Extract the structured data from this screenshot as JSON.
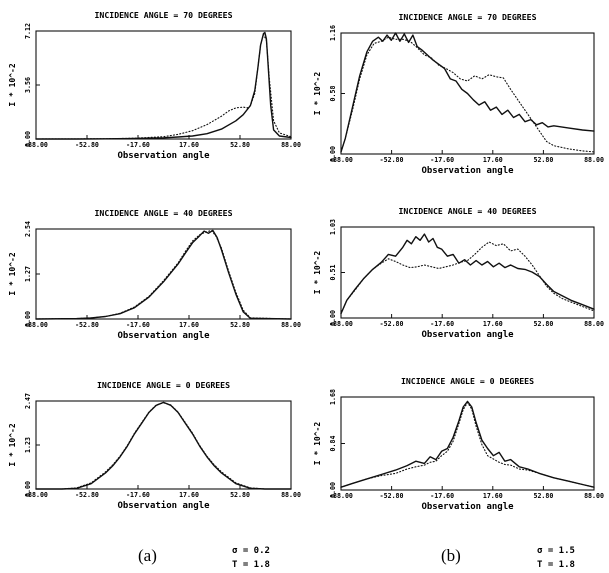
{
  "figure": {
    "panel_labels": [
      "(a)",
      "(b)"
    ],
    "params": [
      {
        "sigma": "σ = 0.2",
        "T": "T = 1.8"
      },
      {
        "sigma": "σ = 1.5",
        "T": "T = 1.8"
      }
    ]
  },
  "chart_data": [
    {
      "type": "line",
      "title": "INCIDENCE ANGLE = 70 DEGREES",
      "xlabel": "Observation angle",
      "ylabel": "I * 10^-2",
      "xlim": [
        -88,
        88
      ],
      "ylim": [
        0,
        7.12
      ],
      "xticks": [
        "-88.00",
        "-52.80",
        "-17.60",
        "17.60",
        "52.80",
        "88.00"
      ],
      "yticks": [
        "0.00",
        "3.56",
        "7.12"
      ],
      "series": [
        {
          "style": "solid",
          "x": [
            -88,
            -60,
            -40,
            -20,
            0,
            10,
            20,
            30,
            40,
            50,
            55,
            60,
            63,
            65,
            67,
            69,
            70,
            71,
            72,
            74,
            76,
            80,
            88
          ],
          "y": [
            0,
            0,
            0.01,
            0.03,
            0.08,
            0.13,
            0.2,
            0.35,
            0.65,
            1.2,
            1.6,
            2.2,
            3.2,
            4.6,
            6.2,
            6.95,
            7.02,
            6.6,
            5.2,
            2.2,
            0.6,
            0.2,
            0.1
          ]
        },
        {
          "style": "dotted",
          "x": [
            -88,
            -40,
            -20,
            0,
            10,
            20,
            30,
            40,
            45,
            50,
            55,
            58,
            60,
            63,
            65,
            67,
            69,
            71,
            73,
            76,
            80,
            88
          ],
          "y": [
            0,
            0.01,
            0.05,
            0.15,
            0.3,
            0.55,
            0.95,
            1.5,
            1.85,
            2.05,
            2.1,
            2.05,
            2.2,
            3.0,
            4.6,
            6.2,
            6.9,
            6.5,
            4.0,
            1.2,
            0.4,
            0.15
          ]
        }
      ]
    },
    {
      "type": "line",
      "title": "INCIDENCE ANGLE = 70 DEGREES",
      "xlabel": "Observation angle",
      "ylabel": "I * 10^-2",
      "xlim": [
        -88,
        88
      ],
      "ylim": [
        0,
        1.16
      ],
      "xticks": [
        "-88.00",
        "-52.80",
        "-17.60",
        "17.60",
        "52.80",
        "88.00"
      ],
      "yticks": [
        "0.00",
        "0.58",
        "1.16"
      ],
      "series": [
        {
          "style": "solid",
          "x": [
            -88,
            -85,
            -80,
            -75,
            -70,
            -66,
            -62,
            -59,
            -56,
            -53,
            -50,
            -47,
            -44,
            -41,
            -38,
            -35,
            -32,
            -28,
            -24,
            -20,
            -16,
            -12,
            -8,
            -4,
            0,
            4,
            8,
            12,
            16,
            20,
            24,
            28,
            32,
            36,
            40,
            44,
            48,
            52,
            56,
            60,
            70,
            80,
            88
          ],
          "y": [
            0.02,
            0.15,
            0.45,
            0.75,
            0.98,
            1.08,
            1.12,
            1.08,
            1.14,
            1.09,
            1.16,
            1.08,
            1.15,
            1.07,
            1.14,
            1.03,
            1.0,
            0.95,
            0.9,
            0.86,
            0.82,
            0.72,
            0.7,
            0.62,
            0.58,
            0.52,
            0.47,
            0.5,
            0.42,
            0.45,
            0.38,
            0.42,
            0.35,
            0.38,
            0.31,
            0.33,
            0.28,
            0.3,
            0.26,
            0.27,
            0.25,
            0.23,
            0.22
          ]
        },
        {
          "style": "dotted",
          "x": [
            -88,
            -85,
            -80,
            -75,
            -70,
            -65,
            -60,
            -55,
            -50,
            -45,
            -40,
            -35,
            -30,
            -25,
            -20,
            -15,
            -10,
            -5,
            0,
            5,
            10,
            15,
            20,
            25,
            30,
            35,
            40,
            45,
            50,
            55,
            60,
            70,
            80,
            88
          ],
          "y": [
            0.02,
            0.15,
            0.42,
            0.72,
            0.95,
            1.06,
            1.08,
            1.12,
            1.1,
            1.1,
            1.08,
            1.02,
            0.95,
            0.92,
            0.85,
            0.82,
            0.78,
            0.72,
            0.7,
            0.75,
            0.72,
            0.76,
            0.74,
            0.73,
            0.62,
            0.52,
            0.42,
            0.32,
            0.22,
            0.12,
            0.08,
            0.05,
            0.03,
            0.02
          ]
        }
      ]
    },
    {
      "type": "line",
      "title": "INCIDENCE ANGLE = 40 DEGREES",
      "xlabel": "Observation angle",
      "ylabel": "I * 10^-2",
      "xlim": [
        -88,
        88
      ],
      "ylim": [
        0,
        2.54
      ],
      "xticks": [
        "-88.00",
        "-52.80",
        "-17.60",
        "17.60",
        "52.80",
        "88.00"
      ],
      "yticks": [
        "0.00",
        "1.27",
        "2.54"
      ],
      "series": [
        {
          "style": "solid",
          "x": [
            -88,
            -60,
            -50,
            -40,
            -30,
            -20,
            -10,
            0,
            10,
            15,
            20,
            25,
            28,
            31,
            34,
            37,
            40,
            45,
            50,
            55,
            60,
            88
          ],
          "y": [
            0,
            0.01,
            0.03,
            0.07,
            0.15,
            0.32,
            0.62,
            1.05,
            1.55,
            1.85,
            2.15,
            2.35,
            2.48,
            2.42,
            2.5,
            2.3,
            1.95,
            1.3,
            0.7,
            0.2,
            0.02,
            0
          ]
        },
        {
          "style": "dotted",
          "x": [
            -88,
            -60,
            -50,
            -40,
            -30,
            -20,
            -10,
            0,
            10,
            15,
            20,
            25,
            29,
            33,
            36,
            40,
            45,
            50,
            55,
            60,
            88
          ],
          "y": [
            0,
            0.01,
            0.03,
            0.07,
            0.16,
            0.34,
            0.64,
            1.08,
            1.58,
            1.9,
            2.2,
            2.38,
            2.45,
            2.5,
            2.35,
            2.0,
            1.35,
            0.75,
            0.25,
            0.03,
            0
          ]
        }
      ]
    },
    {
      "type": "line",
      "title": "INCIDENCE ANGLE = 40 DEGREES",
      "xlabel": "Observation angle",
      "ylabel": "I * 10^-2",
      "xlim": [
        -88,
        88
      ],
      "ylim": [
        0,
        1.03
      ],
      "xticks": [
        "-88.00",
        "-52.80",
        "-17.60",
        "17.60",
        "52.80",
        "88.00"
      ],
      "yticks": [
        "0.00",
        "0.51",
        "1.03"
      ],
      "series": [
        {
          "style": "solid",
          "x": [
            -88,
            -84,
            -78,
            -72,
            -66,
            -60,
            -55,
            -50,
            -45,
            -42,
            -39,
            -36,
            -33,
            -30,
            -27,
            -24,
            -21,
            -18,
            -14,
            -10,
            -6,
            -2,
            2,
            6,
            10,
            14,
            18,
            22,
            26,
            30,
            35,
            40,
            45,
            50,
            55,
            60,
            66,
            72,
            80,
            88
          ],
          "y": [
            0.05,
            0.2,
            0.33,
            0.45,
            0.55,
            0.63,
            0.72,
            0.7,
            0.8,
            0.88,
            0.84,
            0.92,
            0.88,
            0.95,
            0.86,
            0.9,
            0.8,
            0.78,
            0.7,
            0.72,
            0.62,
            0.66,
            0.6,
            0.65,
            0.6,
            0.64,
            0.58,
            0.62,
            0.57,
            0.6,
            0.56,
            0.55,
            0.52,
            0.47,
            0.38,
            0.3,
            0.25,
            0.2,
            0.15,
            0.1
          ]
        },
        {
          "style": "dotted",
          "x": [
            -88,
            -84,
            -78,
            -72,
            -66,
            -60,
            -55,
            -50,
            -45,
            -40,
            -35,
            -30,
            -25,
            -20,
            -15,
            -10,
            -5,
            0,
            5,
            10,
            15,
            20,
            25,
            30,
            35,
            40,
            45,
            50,
            55,
            60,
            66,
            72,
            80,
            88
          ],
          "y": [
            0.05,
            0.2,
            0.32,
            0.45,
            0.55,
            0.62,
            0.67,
            0.64,
            0.6,
            0.57,
            0.58,
            0.6,
            0.58,
            0.56,
            0.58,
            0.6,
            0.63,
            0.65,
            0.72,
            0.8,
            0.86,
            0.82,
            0.84,
            0.76,
            0.78,
            0.7,
            0.6,
            0.48,
            0.36,
            0.28,
            0.22,
            0.18,
            0.13,
            0.08
          ]
        }
      ]
    },
    {
      "type": "line",
      "title": "INCIDENCE ANGLE =  0 DEGREES",
      "xlabel": "Observation angle",
      "ylabel": "I * 10^-2",
      "xlim": [
        -88,
        88
      ],
      "ylim": [
        0,
        2.47
      ],
      "xticks": [
        "-88.00",
        "-52.80",
        "-17.60",
        "17.60",
        "52.80",
        "88.00"
      ],
      "yticks": [
        "0.00",
        "1.23",
        "2.47"
      ],
      "series": [
        {
          "style": "solid",
          "x": [
            -88,
            -70,
            -60,
            -50,
            -40,
            -35,
            -30,
            -25,
            -20,
            -15,
            -10,
            -5,
            0,
            5,
            10,
            15,
            20,
            25,
            30,
            35,
            40,
            50,
            60,
            70,
            88
          ],
          "y": [
            0,
            0,
            0.02,
            0.15,
            0.45,
            0.65,
            0.9,
            1.2,
            1.55,
            1.85,
            2.15,
            2.35,
            2.43,
            2.35,
            2.15,
            1.85,
            1.55,
            1.2,
            0.9,
            0.65,
            0.45,
            0.15,
            0.02,
            0,
            0
          ]
        },
        {
          "style": "dotted",
          "x": [
            -88,
            -70,
            -60,
            -50,
            -40,
            -35,
            -30,
            -25,
            -20,
            -15,
            -10,
            -5,
            0,
            5,
            10,
            15,
            20,
            25,
            30,
            35,
            40,
            50,
            60,
            70,
            88
          ],
          "y": [
            0,
            0,
            0.03,
            0.17,
            0.48,
            0.68,
            0.92,
            1.22,
            1.57,
            1.87,
            2.16,
            2.36,
            2.42,
            2.36,
            2.16,
            1.87,
            1.57,
            1.22,
            0.92,
            0.68,
            0.48,
            0.17,
            0.03,
            0,
            0
          ]
        }
      ]
    },
    {
      "type": "line",
      "title": "INCIDENCE ANGLE =  0 DEGREES",
      "xlabel": "Observation angle",
      "ylabel": "I * 10^-2",
      "xlim": [
        -88,
        88
      ],
      "ylim": [
        0,
        1.68
      ],
      "xticks": [
        "-88.00",
        "-52.80",
        "-17.60",
        "17.60",
        "52.80",
        "88.00"
      ],
      "yticks": [
        "0.00",
        "0.84",
        "1.68"
      ],
      "series": [
        {
          "style": "solid",
          "x": [
            -88,
            -80,
            -70,
            -60,
            -50,
            -42,
            -36,
            -30,
            -26,
            -22,
            -18,
            -14,
            -10,
            -6,
            -3,
            0,
            3,
            6,
            10,
            14,
            18,
            22,
            26,
            30,
            36,
            42,
            50,
            60,
            70,
            80,
            88
          ],
          "y": [
            0.05,
            0.12,
            0.2,
            0.28,
            0.36,
            0.44,
            0.52,
            0.48,
            0.6,
            0.55,
            0.7,
            0.75,
            0.95,
            1.25,
            1.5,
            1.6,
            1.5,
            1.22,
            0.9,
            0.75,
            0.62,
            0.68,
            0.52,
            0.55,
            0.42,
            0.38,
            0.3,
            0.22,
            0.16,
            0.1,
            0.05
          ]
        },
        {
          "style": "dotted",
          "x": [
            -88,
            -80,
            -70,
            -60,
            -50,
            -42,
            -36,
            -30,
            -26,
            -22,
            -18,
            -14,
            -10,
            -6,
            -3,
            0,
            3,
            6,
            10,
            14,
            18,
            22,
            26,
            30,
            36,
            42,
            50,
            60,
            70,
            80,
            88
          ],
          "y": [
            0.05,
            0.12,
            0.2,
            0.26,
            0.3,
            0.38,
            0.42,
            0.45,
            0.5,
            0.52,
            0.62,
            0.7,
            0.88,
            1.2,
            1.45,
            1.58,
            1.46,
            1.15,
            0.82,
            0.62,
            0.56,
            0.5,
            0.46,
            0.45,
            0.38,
            0.36,
            0.3,
            0.22,
            0.16,
            0.1,
            0.05
          ]
        }
      ]
    }
  ]
}
